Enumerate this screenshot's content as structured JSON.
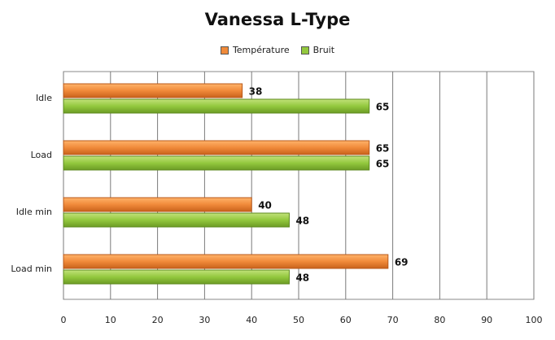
{
  "chart_data": {
    "type": "bar",
    "orientation": "horizontal",
    "title": "Vanessa L-Type",
    "categories": [
      "Idle",
      "Load",
      "Idle min",
      "Load min"
    ],
    "series": [
      {
        "name": "Température",
        "values": [
          38,
          65,
          40,
          69
        ],
        "color": "#f08a3a"
      },
      {
        "name": "Bruit",
        "values": [
          65,
          65,
          48,
          48
        ],
        "color": "#93c83e"
      }
    ],
    "xlim": [
      0,
      100
    ],
    "xticks": [
      0,
      10,
      20,
      30,
      40,
      50,
      60,
      70,
      80,
      90,
      100
    ],
    "grid": true,
    "legend_position": "top"
  }
}
